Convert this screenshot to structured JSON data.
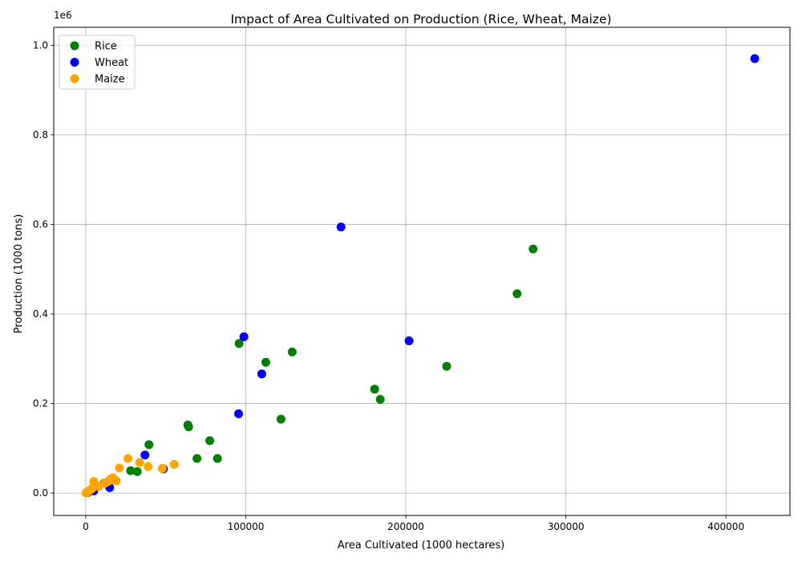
{
  "chart_data": {
    "type": "scatter",
    "title": "Impact of Area Cultivated on Production (Rice, Wheat, Maize)",
    "xlabel": "Area Cultivated (1000 hectares)",
    "ylabel": "Production (1000 tons)",
    "y_offset_label": "1e6",
    "xlim": [
      -20000,
      440000
    ],
    "ylim": [
      -50000,
      1040000
    ],
    "x_ticks": [
      0,
      100000,
      200000,
      300000,
      400000
    ],
    "x_tick_labels": [
      "0",
      "100000",
      "200000",
      "300000",
      "400000"
    ],
    "y_ticks": [
      0,
      200000,
      400000,
      600000,
      800000,
      1000000
    ],
    "y_tick_labels": [
      "0.0",
      "0.2",
      "0.4",
      "0.6",
      "0.8",
      "1.0"
    ],
    "grid": true,
    "legend_position": "top-left",
    "series": [
      {
        "name": "Rice",
        "color": "#008000",
        "points": [
          [
            279500,
            545000
          ],
          [
            269500,
            445000
          ],
          [
            225500,
            283000
          ],
          [
            180500,
            232000
          ],
          [
            184000,
            209000
          ],
          [
            129000,
            315000
          ],
          [
            112500,
            292000
          ],
          [
            95800,
            334000
          ],
          [
            122000,
            165000
          ],
          [
            77500,
            117000
          ],
          [
            63800,
            152000
          ],
          [
            64300,
            148000
          ],
          [
            39500,
            108000
          ],
          [
            69500,
            77000
          ],
          [
            82300,
            77000
          ],
          [
            28000,
            50000
          ],
          [
            32200,
            48000
          ],
          [
            11500,
            22000
          ],
          [
            8000,
            15000
          ],
          [
            5000,
            8000
          ],
          [
            2000,
            3000
          ],
          [
            500,
            1000
          ]
        ]
      },
      {
        "name": "Wheat",
        "color": "#0000ff",
        "points": [
          [
            418000,
            970000
          ],
          [
            159500,
            594000
          ],
          [
            202000,
            340000
          ],
          [
            98800,
            349000
          ],
          [
            110000,
            266000
          ],
          [
            95500,
            177000
          ],
          [
            37000,
            85000
          ],
          [
            48500,
            54000
          ],
          [
            15000,
            12000
          ],
          [
            5000,
            5000
          ],
          [
            1000,
            1000
          ]
        ]
      },
      {
        "name": "Maize",
        "color": "#ffa500",
        "points": [
          [
            55300,
            64000
          ],
          [
            47800,
            55000
          ],
          [
            39000,
            59000
          ],
          [
            33700,
            68000
          ],
          [
            26400,
            77000
          ],
          [
            21000,
            56000
          ],
          [
            19000,
            27000
          ],
          [
            17000,
            34000
          ],
          [
            15500,
            31000
          ],
          [
            14000,
            26000
          ],
          [
            12000,
            22000
          ],
          [
            8000,
            15000
          ],
          [
            5500,
            20000
          ],
          [
            5000,
            26000
          ],
          [
            4000,
            10000
          ],
          [
            2500,
            6000
          ],
          [
            1000,
            2000
          ],
          [
            200,
            500
          ]
        ]
      }
    ]
  }
}
